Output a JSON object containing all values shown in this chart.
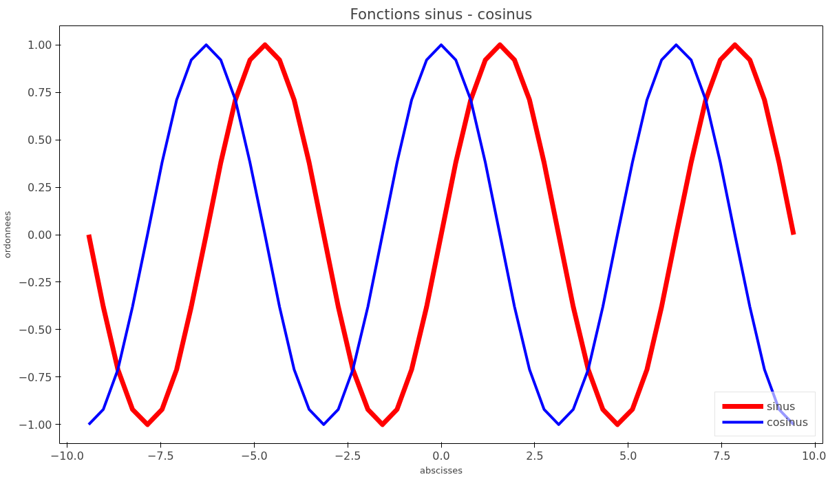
{
  "chart_data": {
    "type": "line",
    "title": "Fonctions sinus - cosinus",
    "xlabel": "abscisses",
    "ylabel": "ordonnees",
    "x": [
      -9.42,
      -9.03,
      -8.64,
      -8.25,
      -7.85,
      -7.46,
      -7.07,
      -6.68,
      -6.28,
      -5.89,
      -5.5,
      -5.11,
      -4.71,
      -4.32,
      -3.93,
      -3.53,
      -3.14,
      -2.75,
      -2.36,
      -1.96,
      -1.57,
      -1.18,
      -0.79,
      -0.39,
      0,
      0.39,
      0.79,
      1.18,
      1.57,
      1.96,
      2.36,
      2.75,
      3.14,
      3.53,
      3.93,
      4.32,
      4.71,
      5.11,
      5.5,
      5.89,
      6.28,
      6.68,
      7.07,
      7.46,
      7.85,
      8.25,
      8.64,
      9.03,
      9.42
    ],
    "series": [
      {
        "name": "sinus",
        "color": "#ff0000",
        "values": [
          0,
          -0.38,
          -0.71,
          -0.92,
          -1,
          -0.92,
          -0.71,
          -0.38,
          0,
          0.38,
          0.71,
          0.92,
          1,
          0.92,
          0.71,
          0.38,
          0,
          -0.38,
          -0.71,
          -0.92,
          -1,
          -0.92,
          -0.71,
          -0.38,
          0,
          0.38,
          0.71,
          0.92,
          1,
          0.92,
          0.71,
          0.38,
          0,
          -0.38,
          -0.71,
          -0.92,
          -1,
          -0.92,
          -0.71,
          -0.38,
          0,
          0.38,
          0.71,
          0.92,
          1,
          0.92,
          0.71,
          0.38,
          0
        ]
      },
      {
        "name": "cosinus",
        "color": "#0000ff",
        "values": [
          -1,
          -0.92,
          -0.71,
          -0.38,
          0,
          0.38,
          0.71,
          0.92,
          1,
          0.92,
          0.71,
          0.38,
          0,
          -0.38,
          -0.71,
          -0.92,
          -1,
          -0.92,
          -0.71,
          -0.38,
          0,
          0.38,
          0.71,
          0.92,
          1,
          0.92,
          0.71,
          0.38,
          0,
          -0.38,
          -0.71,
          -0.92,
          -1,
          -0.92,
          -0.71,
          -0.38,
          0,
          0.38,
          0.71,
          0.92,
          1,
          0.92,
          0.71,
          0.38,
          0,
          -0.38,
          -0.71,
          -0.92,
          -1
        ]
      }
    ],
    "xlim": [
      -10.2,
      10.2
    ],
    "xticks": [
      {
        "value": -10,
        "label": "−10.0"
      },
      {
        "value": -7.5,
        "label": "−7.5"
      },
      {
        "value": -5,
        "label": "−5.0"
      },
      {
        "value": -2.5,
        "label": "−2.5"
      },
      {
        "value": 0,
        "label": "0.0"
      },
      2.5,
      {
        "value": 5,
        "label": "5.0"
      },
      7.5,
      {
        "value": 10,
        "label": "10.0"
      }
    ],
    "ylim": [
      -1.1,
      1.1
    ],
    "yticks": [
      {
        "value": -1,
        "label": "−1.00"
      },
      {
        "value": -0.75,
        "label": "−0.75"
      },
      {
        "value": -0.5,
        "label": "−0.50"
      },
      {
        "value": -0.25,
        "label": "−0.25"
      },
      {
        "value": 0,
        "label": "0.00"
      },
      0.25,
      {
        "value": 0.5,
        "label": "0.50"
      },
      0.75,
      {
        "value": 1,
        "label": "1.00"
      }
    ],
    "grid": false,
    "legend": "bottom right",
    "marker": "none",
    "line_style": "solid"
  }
}
